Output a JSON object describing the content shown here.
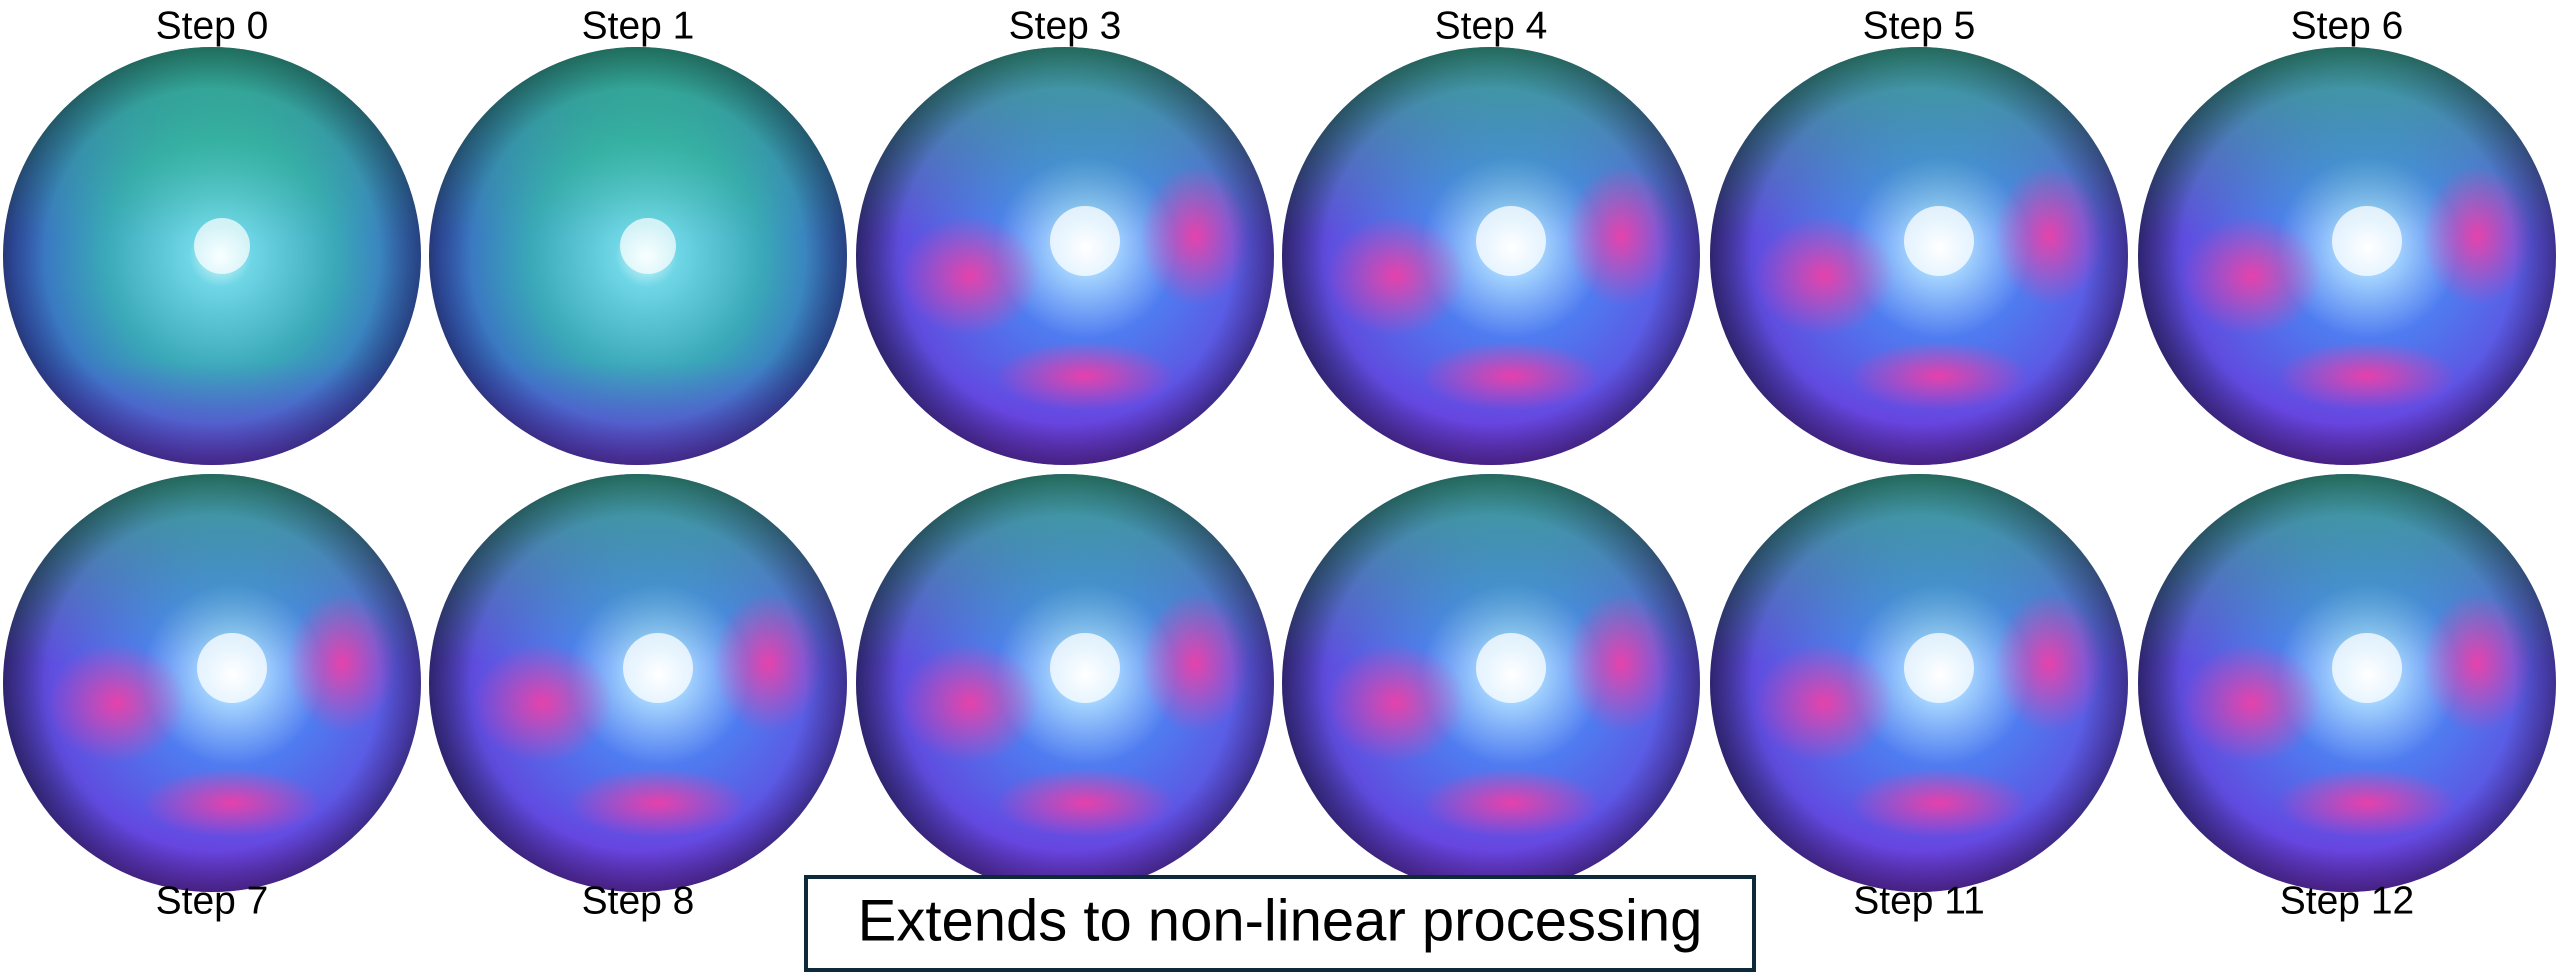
{
  "panels": {
    "rows": [
      [
        "Step 0",
        "Step 1",
        "Step 3",
        "Step 4",
        "Step 5",
        "Step 6"
      ],
      [
        "Step 7",
        "Step 8",
        null,
        null,
        "Step 11",
        "Step 12"
      ]
    ]
  },
  "caption": "Extends to non-linear processing"
}
